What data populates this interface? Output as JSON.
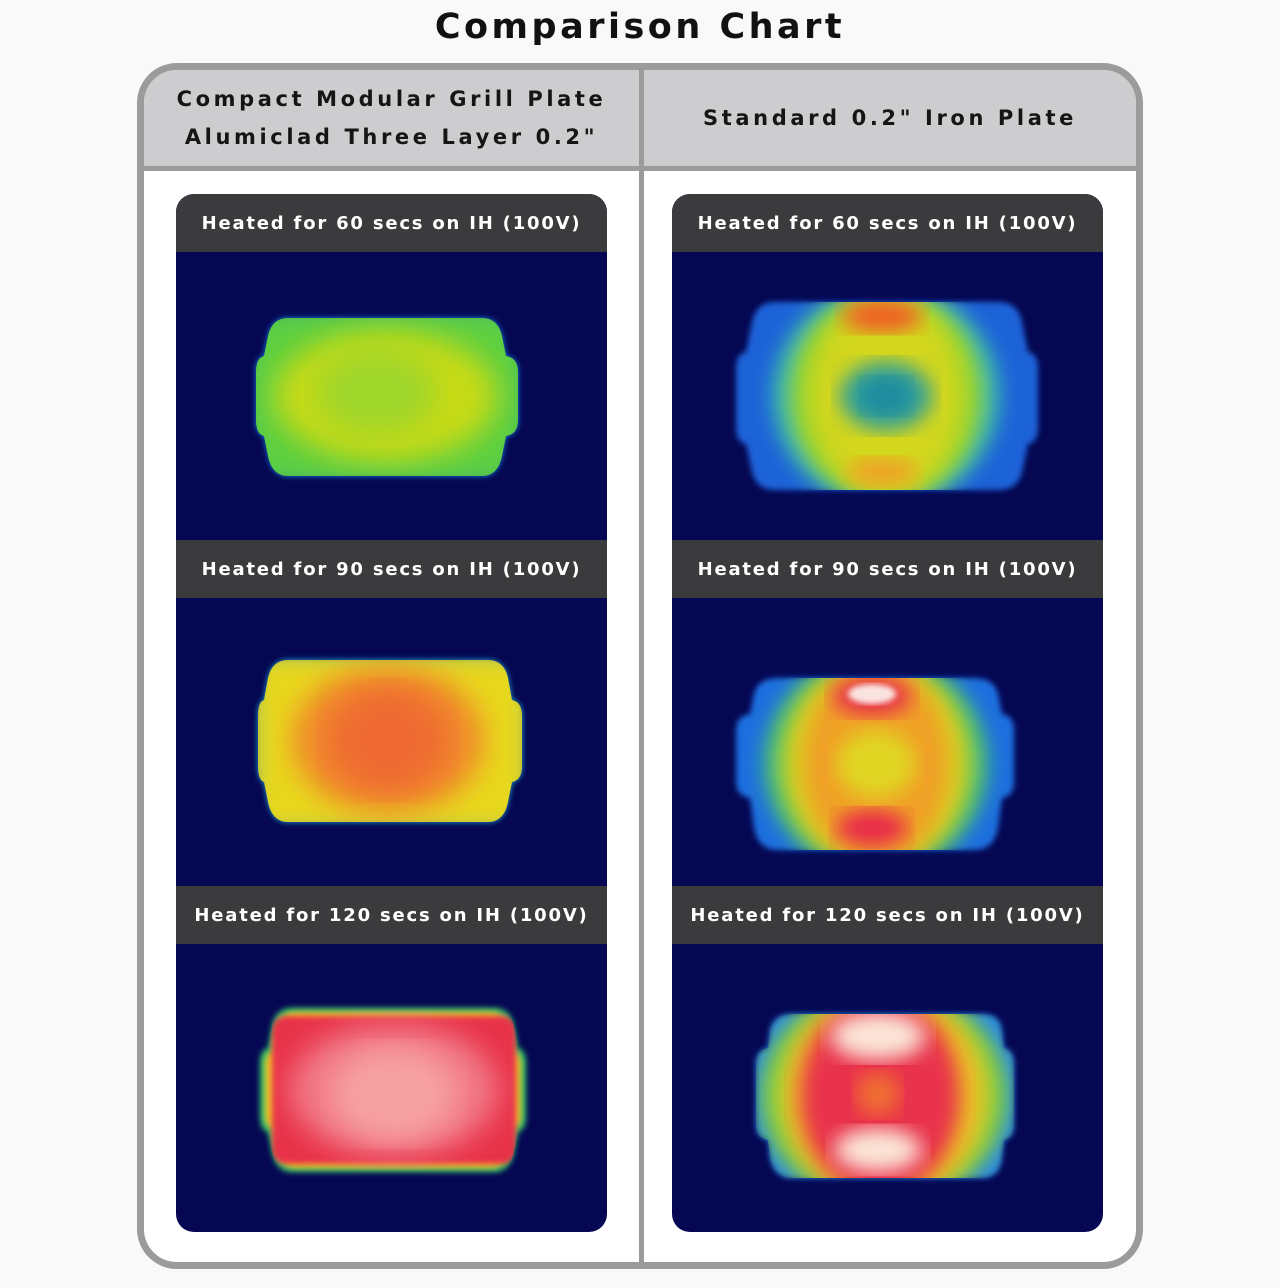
{
  "title": "Comparison Chart",
  "columns": [
    {
      "header_lines": [
        "Compact Modular Grill Plate",
        "Alumiclad Three Layer 0.2\""
      ],
      "rows": [
        {
          "label": "Heated for 60 secs on IH (100V)"
        },
        {
          "label": "Heated for 90 secs on IH (100V)"
        },
        {
          "label": "Heated for 120 secs on IH (100V)"
        }
      ]
    },
    {
      "header_lines": [
        "Standard 0.2\" Iron Plate"
      ],
      "rows": [
        {
          "label": "Heated for 60 secs on IH (100V)"
        },
        {
          "label": "Heated for 90 secs on IH (100V)"
        },
        {
          "label": "Heated for 120 secs on IH (100V)"
        }
      ]
    }
  ],
  "colors": {
    "background": "#050752",
    "label_bar": "#3b3b3d",
    "header": "#cdcdcf",
    "frame": "#9b9b9c"
  }
}
